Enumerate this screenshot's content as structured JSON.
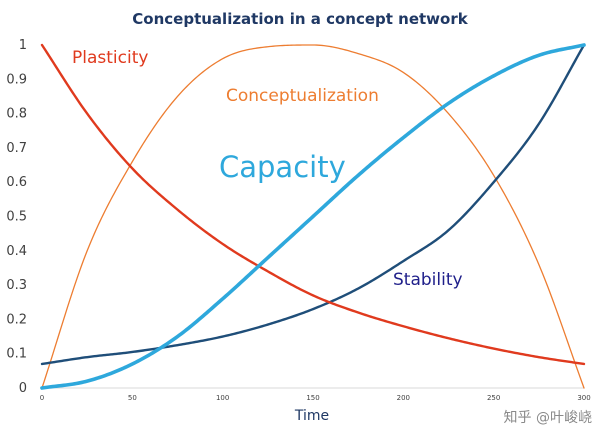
{
  "chart_data": {
    "type": "line",
    "title": "Conceptualization in a concept network",
    "xlabel": "Time",
    "ylabel": "",
    "xlim": [
      0,
      300
    ],
    "ylim": [
      0,
      1
    ],
    "x_ticks": [
      "0",
      "50",
      "100",
      "150",
      "200",
      "250",
      "300"
    ],
    "y_ticks": [
      "0",
      "0.1",
      "0.2",
      "0.3",
      "0.4",
      "0.5",
      "0.6",
      "0.7",
      "0.8",
      "0.9",
      "1"
    ],
    "grid": false,
    "legend": "none",
    "x": [
      0,
      25,
      50,
      75,
      100,
      125,
      150,
      175,
      200,
      225,
      250,
      275,
      300
    ],
    "series": [
      {
        "name": "Plasticity",
        "color": "#e03a1e",
        "values": [
          1.0,
          0.8,
          0.64,
          0.52,
          0.42,
          0.34,
          0.27,
          0.22,
          0.18,
          0.145,
          0.115,
          0.09,
          0.07
        ]
      },
      {
        "name": "Conceptualization",
        "color": "#ed7d31",
        "values": [
          0.0,
          0.4,
          0.66,
          0.85,
          0.96,
          0.995,
          1.0,
          0.975,
          0.92,
          0.8,
          0.62,
          0.36,
          0.0
        ]
      },
      {
        "name": "Capacity",
        "color": "#2ea8dc",
        "values": [
          0.0,
          0.02,
          0.07,
          0.15,
          0.26,
          0.38,
          0.5,
          0.62,
          0.73,
          0.83,
          0.91,
          0.97,
          1.0
        ]
      },
      {
        "name": "Stability",
        "color": "#1f4e79",
        "values": [
          0.07,
          0.09,
          0.105,
          0.125,
          0.15,
          0.185,
          0.23,
          0.29,
          0.37,
          0.46,
          0.6,
          0.77,
          1.0
        ]
      }
    ],
    "annotations": [
      {
        "text": "Plasticity",
        "color": "#e03a1e"
      },
      {
        "text": "Conceptualization",
        "color": "#ed7d31"
      },
      {
        "text": "Capacity",
        "color": "#2ea8dc"
      },
      {
        "text": "Stability",
        "color": "#1f1f8a"
      }
    ],
    "title_color": "#1f3864"
  },
  "watermark": "知乎 @叶峻峣"
}
